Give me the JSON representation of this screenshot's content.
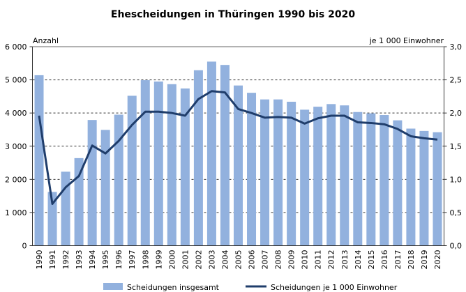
{
  "chart_data": {
    "type": "bar+line",
    "title": "Ehescheidungen in Thüringen 1990 bis 2020",
    "ylabel_left": "Anzahl",
    "ylabel_right": "je 1 000 Einwohner",
    "ylim_left": [
      0,
      6000
    ],
    "ylim_right": [
      0,
      3.0
    ],
    "yticks_left": [
      "0",
      "1 000",
      "2 000",
      "3 000",
      "4 000",
      "5 000",
      "6 000"
    ],
    "yticks_right": [
      "0,0",
      "0,5",
      "1,0",
      "1,5",
      "2,0",
      "2,5",
      "3,0"
    ],
    "grid": true,
    "legend_position": "bottom",
    "categories": [
      "1990",
      "1991",
      "1992",
      "1993",
      "1994",
      "1995",
      "1996",
      "1997",
      "1998",
      "1999",
      "2000",
      "2001",
      "2002",
      "2003",
      "2004",
      "2005",
      "2006",
      "2007",
      "2008",
      "2009",
      "2010",
      "2011",
      "2012",
      "2013",
      "2014",
      "2015",
      "2016",
      "2017",
      "2018",
      "2019",
      "2020"
    ],
    "series": [
      {
        "name": "Scheidungen insgesamt",
        "type": "bar",
        "axis": "left",
        "color": "#92b1de",
        "values": [
          5140,
          1620,
          2230,
          2640,
          3790,
          3490,
          3950,
          4520,
          4990,
          4950,
          4870,
          4740,
          5290,
          5550,
          5450,
          4830,
          4610,
          4410,
          4410,
          4340,
          4100,
          4190,
          4270,
          4230,
          4030,
          3990,
          3940,
          3780,
          3530,
          3460,
          3420
        ]
      },
      {
        "name": "Scheidungen je 1 000 Einwohner",
        "type": "line",
        "axis": "right",
        "color": "#1f3d6b",
        "values": [
          1.96,
          0.63,
          0.88,
          1.05,
          1.51,
          1.39,
          1.58,
          1.82,
          2.02,
          2.02,
          2.0,
          1.96,
          2.21,
          2.33,
          2.31,
          2.06,
          2.0,
          1.93,
          1.94,
          1.93,
          1.84,
          1.92,
          1.96,
          1.96,
          1.86,
          1.85,
          1.83,
          1.76,
          1.65,
          1.62,
          1.6
        ]
      }
    ]
  }
}
